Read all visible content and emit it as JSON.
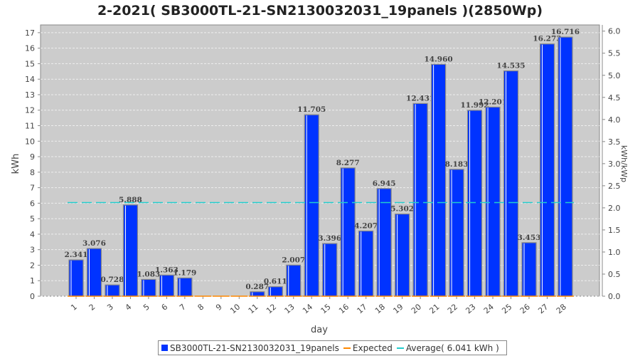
{
  "chart_data": {
    "type": "bar",
    "title": "2-2021( SB3000TL-21-SN2130032031_19panels )(2850Wp)",
    "xlabel": "day",
    "ylabel": "kWh",
    "y2label": "kWh/kWp",
    "categories": [
      "1",
      "2",
      "3",
      "4",
      "5",
      "6",
      "7",
      "8",
      "9",
      "10",
      "11",
      "12",
      "13",
      "14",
      "15",
      "16",
      "17",
      "18",
      "19",
      "20",
      "21",
      "22",
      "23",
      "24",
      "25",
      "26",
      "27",
      "28"
    ],
    "values": [
      2.341,
      3.076,
      0.728,
      5.888,
      1.083,
      1.363,
      1.179,
      0,
      0,
      0,
      0.287,
      0.611,
      2.007,
      11.705,
      3.396,
      8.277,
      4.207,
      6.945,
      5.302,
      12.431,
      14.96,
      8.183,
      11.992,
      12.201,
      14.535,
      3.453,
      16.273,
      16.716
    ],
    "labels": [
      "2.341",
      "3.076",
      "0.728",
      "5.888",
      "1.083",
      "1.363",
      "1.179",
      "",
      "",
      "",
      "0.287",
      "0.611",
      "2.007",
      "11.705",
      "3.396",
      "8.277",
      "4.207",
      "6.945",
      "5.302",
      "12.431",
      "14.960",
      "8.183",
      "11.992",
      "12.201",
      "14.535",
      "3.453",
      "16.273",
      "16.716"
    ],
    "average": 6.041,
    "expected": 0,
    "ylim": [
      0,
      17.5
    ],
    "yticks": [
      "0",
      "1",
      "2",
      "3",
      "4",
      "5",
      "6",
      "7",
      "8",
      "9",
      "10",
      "11",
      "12",
      "13",
      "14",
      "15",
      "16",
      "17"
    ],
    "y2ticks": [
      "0.0",
      "0.5",
      "1.0",
      "1.5",
      "2.0",
      "2.5",
      "3.0",
      "3.5",
      "4.0",
      "4.5",
      "5.0",
      "5.5",
      "6.0"
    ],
    "y2_per_y": 0.350877,
    "legend": [
      "SB3000TL-21-SN2130032031_19panels",
      "Expected",
      "Average( 6.041 kWh )"
    ],
    "legend_position": "bottom",
    "colors": {
      "bar": "#0033ff",
      "expected": "#ff8800",
      "average": "#22cccc",
      "plot_bg": "#cccccc"
    }
  }
}
